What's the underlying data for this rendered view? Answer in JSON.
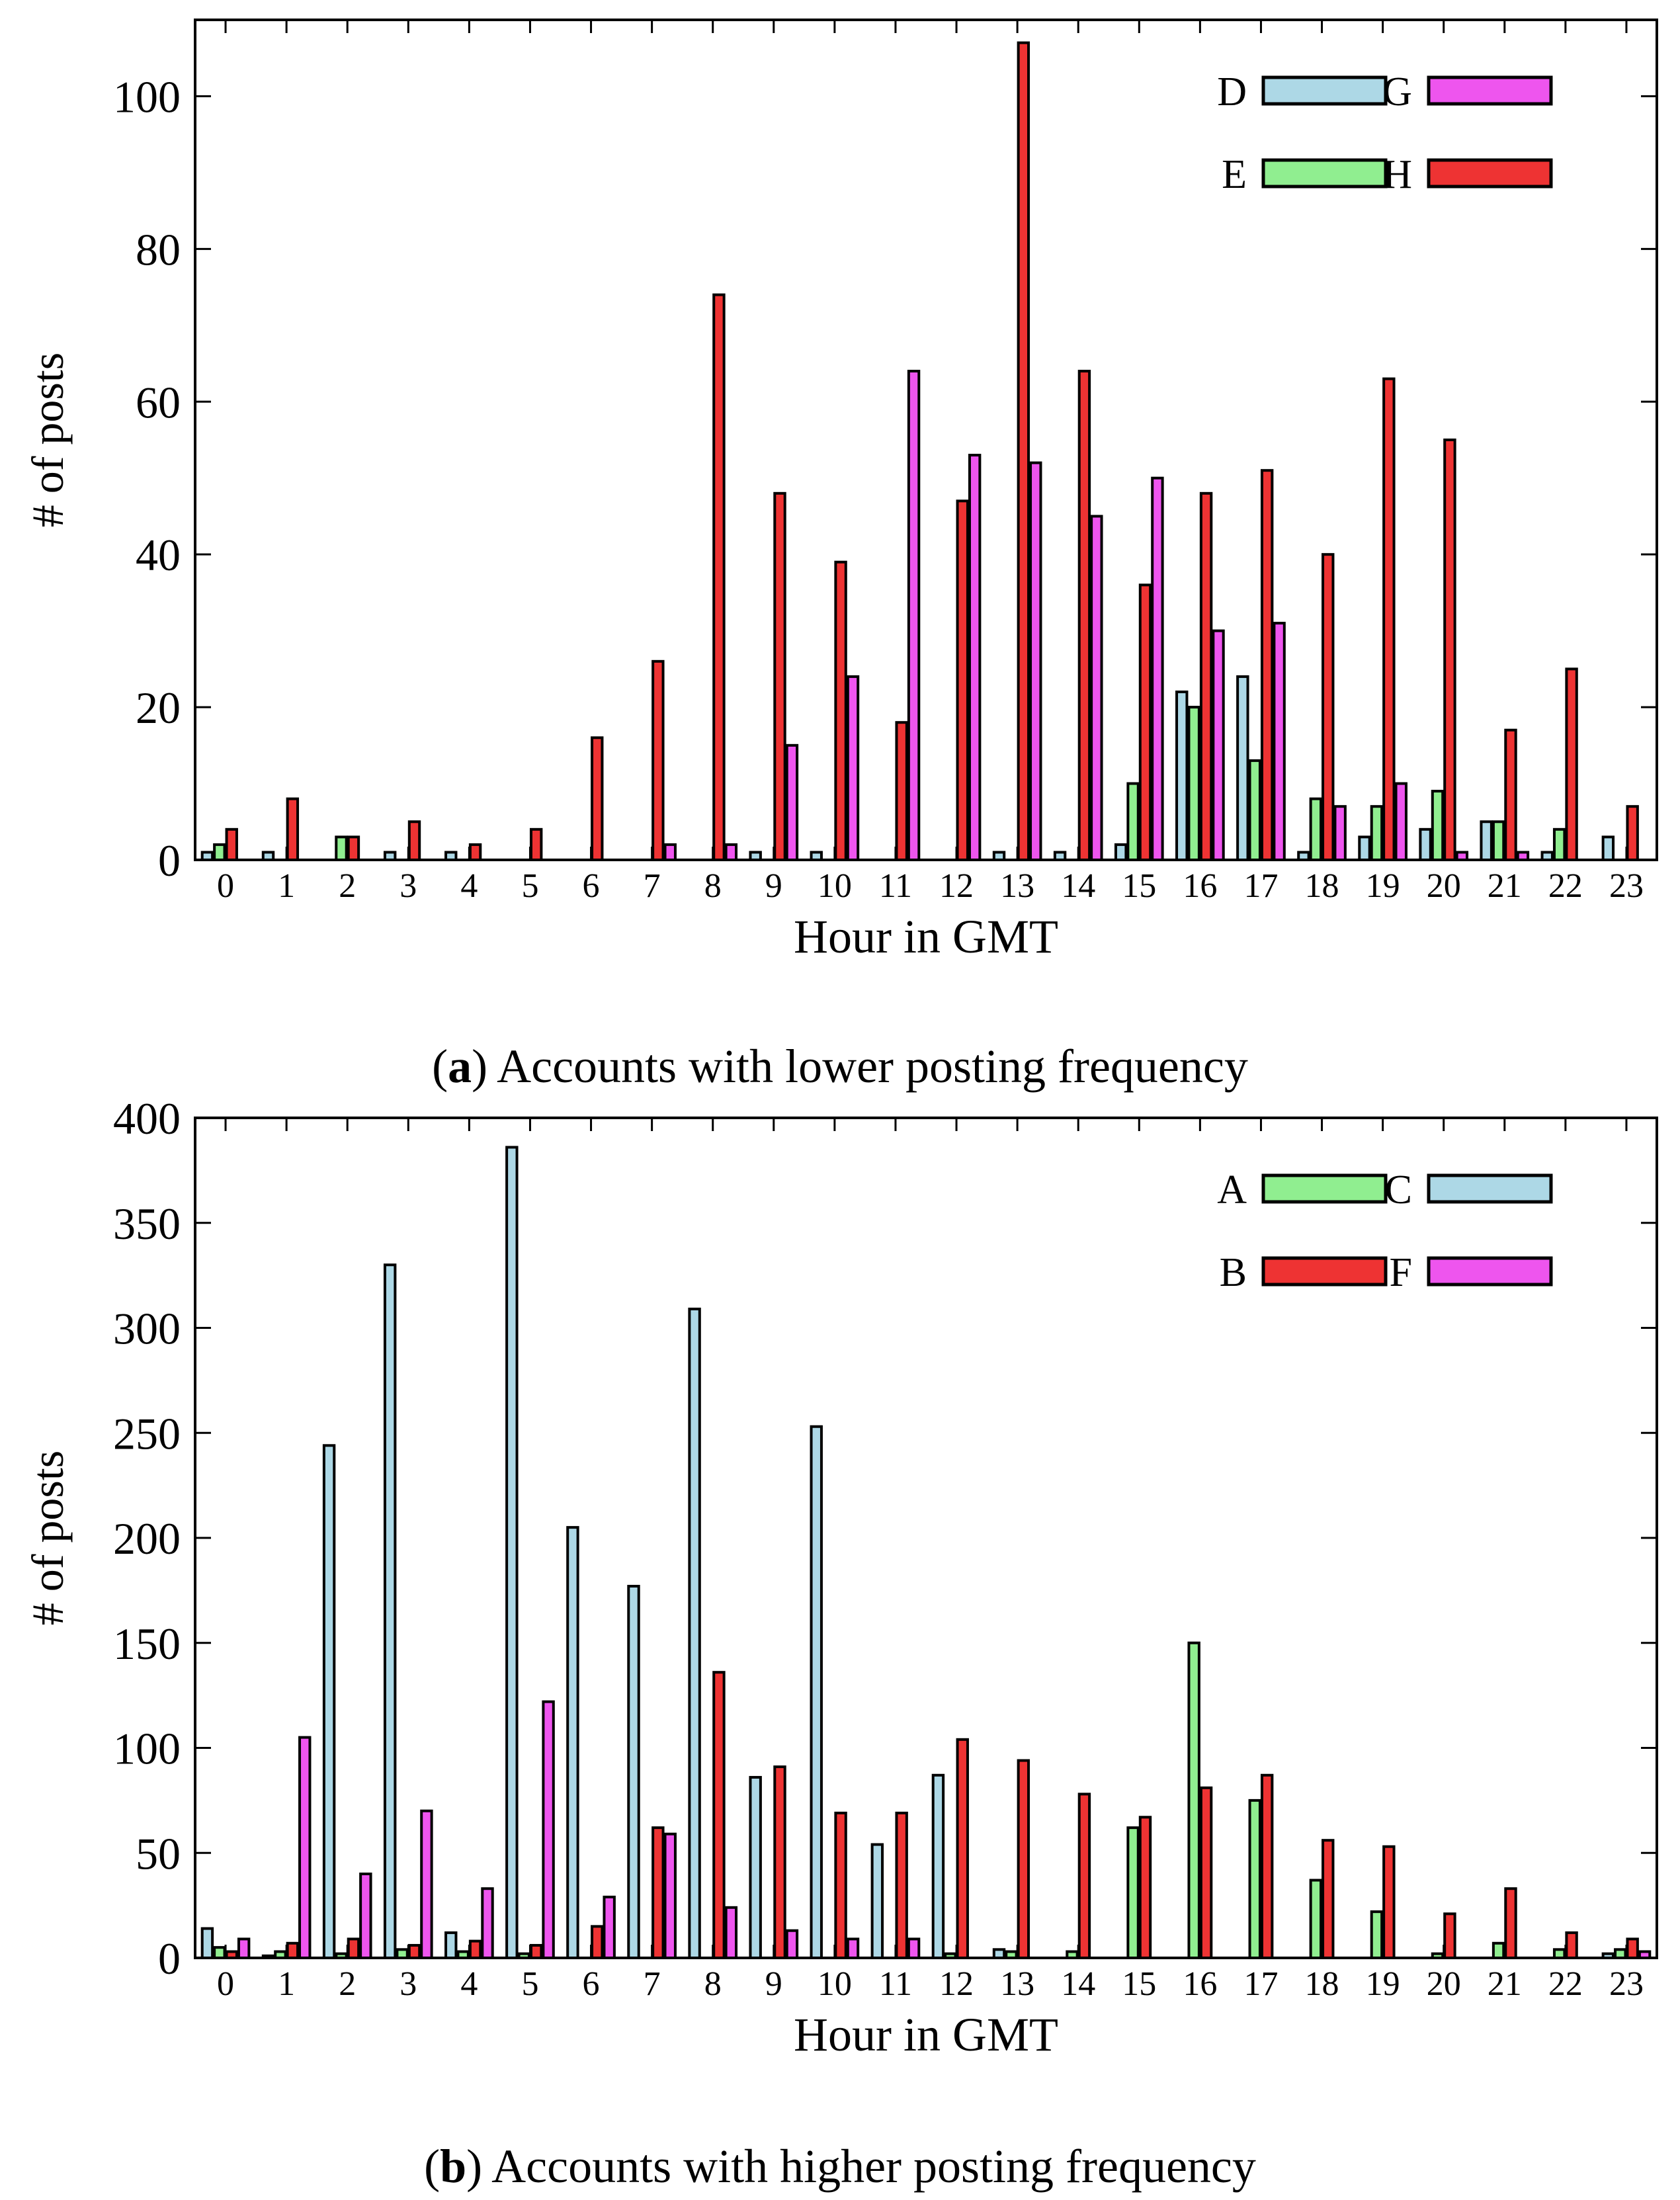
{
  "chart_data": [
    {
      "type": "bar",
      "caption_label": "a",
      "caption_text": "Accounts with lower posting frequency",
      "xlabel": "Hour in GMT",
      "ylabel": "# of posts",
      "ylim": [
        0,
        110
      ],
      "yticks": [
        0,
        20,
        40,
        60,
        80,
        100
      ],
      "grid": false,
      "legend_position": "top-right",
      "categories": [
        "0",
        "1",
        "2",
        "3",
        "4",
        "5",
        "6",
        "7",
        "8",
        "9",
        "10",
        "11",
        "12",
        "13",
        "14",
        "15",
        "16",
        "17",
        "18",
        "19",
        "20",
        "21",
        "22",
        "23"
      ],
      "series": [
        {
          "name": "D",
          "color": "#add8e6",
          "values": [
            1,
            1,
            0,
            1,
            1,
            0,
            0,
            0,
            0,
            1,
            1,
            0,
            0,
            1,
            1,
            2,
            22,
            24,
            1,
            3,
            4,
            5,
            1,
            3
          ]
        },
        {
          "name": "E",
          "color": "#90ee90",
          "values": [
            2,
            0,
            3,
            0,
            0,
            0,
            0,
            0,
            0,
            0,
            0,
            0,
            0,
            0,
            0,
            10,
            20,
            13,
            8,
            7,
            9,
            5,
            4,
            0
          ]
        },
        {
          "name": "H",
          "color": "#ee3333",
          "values": [
            4,
            8,
            3,
            5,
            2,
            4,
            16,
            26,
            74,
            48,
            39,
            18,
            47,
            107,
            64,
            36,
            48,
            51,
            40,
            63,
            55,
            17,
            25,
            7
          ]
        },
        {
          "name": "G",
          "color": "#ee55ee",
          "values": [
            0,
            0,
            0,
            0,
            0,
            0,
            0,
            2,
            2,
            15,
            24,
            64,
            53,
            52,
            45,
            50,
            30,
            31,
            7,
            10,
            1,
            1,
            0,
            0
          ]
        }
      ],
      "legend_order": [
        "D",
        "G",
        "E",
        "H"
      ]
    },
    {
      "type": "bar",
      "caption_label": "b",
      "caption_text": "Accounts with higher posting frequency",
      "xlabel": "Hour in GMT",
      "ylabel": "# of posts",
      "ylim": [
        0,
        400
      ],
      "yticks": [
        0,
        50,
        100,
        150,
        200,
        250,
        300,
        350,
        400
      ],
      "grid": false,
      "legend_position": "top-right",
      "categories": [
        "0",
        "1",
        "2",
        "3",
        "4",
        "5",
        "6",
        "7",
        "8",
        "9",
        "10",
        "11",
        "12",
        "13",
        "14",
        "15",
        "16",
        "17",
        "18",
        "19",
        "20",
        "21",
        "22",
        "23"
      ],
      "series": [
        {
          "name": "C",
          "color": "#add8e6",
          "values": [
            14,
            1,
            244,
            330,
            12,
            386,
            205,
            177,
            309,
            86,
            253,
            54,
            87,
            4,
            0,
            0,
            0,
            0,
            0,
            0,
            0,
            0,
            0,
            2
          ]
        },
        {
          "name": "A",
          "color": "#90ee90",
          "values": [
            5,
            3,
            2,
            4,
            3,
            2,
            0,
            0,
            0,
            0,
            0,
            0,
            2,
            3,
            3,
            62,
            150,
            75,
            37,
            22,
            2,
            7,
            4,
            4
          ]
        },
        {
          "name": "B",
          "color": "#ee3333",
          "values": [
            3,
            7,
            9,
            6,
            8,
            6,
            15,
            62,
            136,
            91,
            69,
            69,
            104,
            94,
            78,
            67,
            81,
            87,
            56,
            53,
            21,
            33,
            12,
            9
          ]
        },
        {
          "name": "F",
          "color": "#ee55ee",
          "values": [
            9,
            105,
            40,
            70,
            33,
            122,
            29,
            59,
            24,
            13,
            9,
            9,
            0,
            0,
            0,
            0,
            0,
            0,
            0,
            0,
            0,
            0,
            0,
            3
          ]
        }
      ],
      "legend_order": [
        "A",
        "C",
        "B",
        "F"
      ]
    }
  ]
}
